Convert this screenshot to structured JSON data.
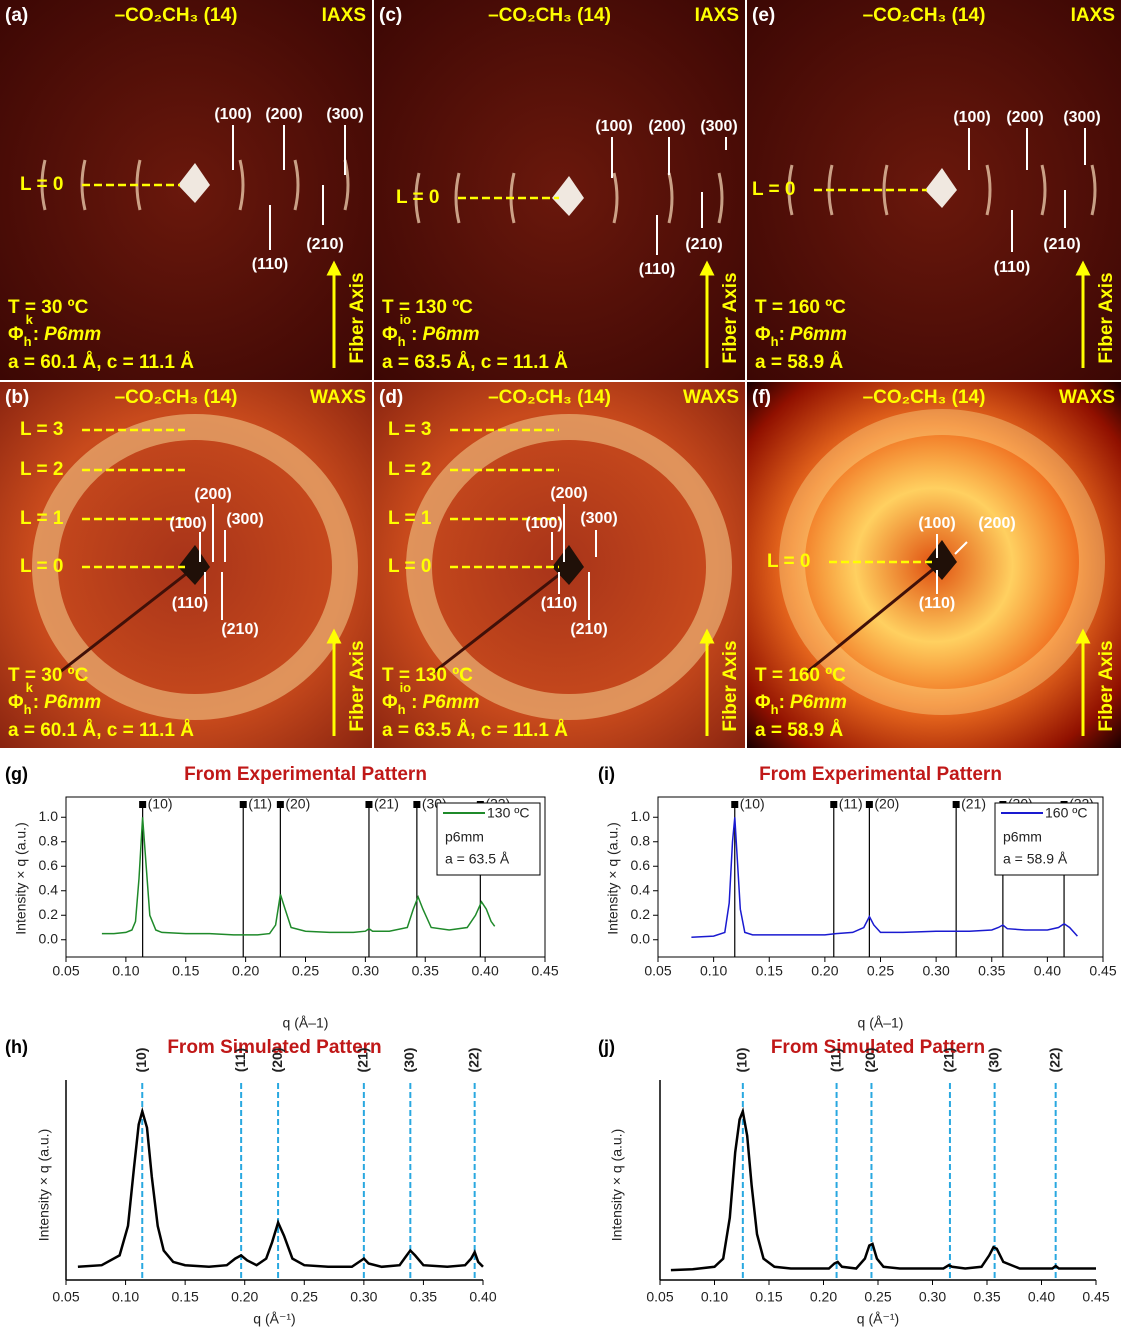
{
  "panels": [
    {
      "label": "(a)",
      "title": "–CO₂CH₃ (14)",
      "mode": "IAXS",
      "layers": [
        "L = 0"
      ],
      "reflections": [
        "(100)",
        "(200)",
        "(300)",
        "(110)",
        "(210)"
      ],
      "temperature": "T = 30 ºC",
      "phase": {
        "symbol": "Φ",
        "sub": "h",
        "sup": "k",
        "separator": ":",
        "group": "P6mm"
      },
      "lattice": "a = 60.1 Å, c = 11.1 Å",
      "axis": "Fiber Axis"
    },
    {
      "label": "(c)",
      "title": "–CO₂CH₃ (14)",
      "mode": "IAXS",
      "layers": [
        "L = 0"
      ],
      "reflections": [
        "(100)",
        "(200)",
        "(300)",
        "(110)",
        "(210)"
      ],
      "temperature": "T = 130 ºC",
      "phase": {
        "symbol": "Φ",
        "sub": "h",
        "sup": "io",
        "separator": ":",
        "group": "P6mm"
      },
      "lattice": "a = 63.5 Å, c = 11.1 Å",
      "axis": "Fiber Axis"
    },
    {
      "label": "(e)",
      "title": "–CO₂CH₃ (14)",
      "mode": "IAXS",
      "layers": [
        "L = 0"
      ],
      "reflections": [
        "(100)",
        "(200)",
        "(300)",
        "(110)",
        "(210)"
      ],
      "temperature": "T = 160 ºC",
      "phase": {
        "symbol": "Φ",
        "sub": "h",
        "separator": ":",
        "group": "P6mm"
      },
      "lattice": "a = 58.9 Å",
      "axis": "Fiber Axis"
    },
    {
      "label": "(b)",
      "title": "–CO₂CH₃ (14)",
      "mode": "WAXS",
      "layers": [
        "L = 3",
        "L = 2",
        "L = 1",
        "L = 0"
      ],
      "reflections": [
        "(200)",
        "(100)",
        "(300)",
        "(110)",
        "(210)"
      ],
      "temperature": "T = 30 ºC",
      "phase": {
        "symbol": "Φ",
        "sub": "h",
        "sup": "k",
        "separator": ":",
        "group": "P6mm"
      },
      "lattice": "a = 60.1 Å, c = 11.1 Å",
      "axis": "Fiber Axis"
    },
    {
      "label": "(d)",
      "title": "–CO₂CH₃ (14)",
      "mode": "WAXS",
      "layers": [
        "L = 3",
        "L = 2",
        "L = 1",
        "L = 0"
      ],
      "reflections": [
        "(200)",
        "(100)",
        "(300)",
        "(110)",
        "(210)"
      ],
      "temperature": "T = 130 ºC",
      "phase": {
        "symbol": "Φ",
        "sub": "h",
        "sup": "io",
        "separator": ":",
        "group": "P6mm"
      },
      "lattice": "a = 63.5 Å, c = 11.1 Å",
      "axis": "Fiber Axis"
    },
    {
      "label": "(f)",
      "title": "–CO₂CH₃ (14)",
      "mode": "WAXS",
      "layers": [
        "L = 0"
      ],
      "reflections": [
        "(100)",
        "(200)",
        "(110)"
      ],
      "temperature": "T = 160 ºC",
      "phase": {
        "symbol": "Φ",
        "sub": "h",
        "separator": ":",
        "group": "P6mm"
      },
      "lattice": "a = 58.9 Å",
      "axis": "Fiber Axis"
    }
  ],
  "chart_data": [
    {
      "type": "line",
      "panel_label": "(g)",
      "title": "From Experimental Pattern",
      "xlabel": "q (Å–1)",
      "ylabel": "Intensity × q (a.u.)",
      "xlim": [
        0.05,
        0.45
      ],
      "xticks": [
        0.05,
        {
          "value": 0.1,
          "label": "0.10"
        },
        0.15,
        {
          "value": 0.2,
          "label": "0.20"
        },
        0.25,
        {
          "value": 0.3,
          "label": "0.30"
        },
        0.35,
        {
          "value": 0.4,
          "label": "0.40"
        },
        0.45
      ],
      "ylim": [
        -0.1,
        1.1
      ],
      "yticks": [
        {
          "value": 0,
          "label": "0.0"
        },
        0.2,
        0.4,
        0.6,
        0.8,
        {
          "value": 1,
          "label": "1.0"
        }
      ],
      "x": [
        0.08,
        0.09,
        0.1,
        0.105,
        0.108,
        0.111,
        0.114,
        0.117,
        0.12,
        0.125,
        0.13,
        0.15,
        0.17,
        0.19,
        0.21,
        0.22,
        0.225,
        0.229,
        0.233,
        0.238,
        0.25,
        0.27,
        0.29,
        0.3,
        0.303,
        0.306,
        0.32,
        0.335,
        0.34,
        0.344,
        0.348,
        0.355,
        0.37,
        0.385,
        0.392,
        0.397,
        0.401,
        0.405,
        0.408
      ],
      "series": [
        {
          "name": "130 ºC",
          "color": "#1f8a2a",
          "values": [
            0.05,
            0.05,
            0.06,
            0.08,
            0.15,
            0.5,
            1.0,
            0.6,
            0.2,
            0.08,
            0.06,
            0.05,
            0.05,
            0.04,
            0.04,
            0.05,
            0.12,
            0.37,
            0.25,
            0.1,
            0.07,
            0.06,
            0.06,
            0.07,
            0.09,
            0.07,
            0.07,
            0.1,
            0.25,
            0.35,
            0.25,
            0.1,
            0.08,
            0.1,
            0.2,
            0.31,
            0.25,
            0.15,
            0.11
          ]
        }
      ],
      "reference_lines": {
        "x": [
          0.114,
          0.198,
          0.229,
          0.303,
          0.343,
          0.396
        ],
        "labels": [
          "(10)",
          "(11)",
          "(20)",
          "(21)",
          "(30)",
          "(22)"
        ],
        "color": "#000000"
      },
      "legend_notes": [
        "p6mm",
        "a = 63.5 Å"
      ]
    },
    {
      "type": "line",
      "panel_label": "(i)",
      "title": "From Experimental Pattern",
      "xlabel": "q (Å–1)",
      "ylabel": "Intensity × q (a.u.)",
      "xlim": [
        0.05,
        0.45
      ],
      "xticks": [
        0.05,
        {
          "value": 0.1,
          "label": "0.10"
        },
        0.15,
        {
          "value": 0.2,
          "label": "0.20"
        },
        0.25,
        {
          "value": 0.3,
          "label": "0.30"
        },
        0.35,
        {
          "value": 0.4,
          "label": "0.40"
        },
        0.45
      ],
      "ylim": [
        -0.1,
        1.1
      ],
      "yticks": [
        {
          "value": 0,
          "label": "0.0"
        },
        0.2,
        0.4,
        0.6,
        0.8,
        {
          "value": 1,
          "label": "1.0"
        }
      ],
      "x": [
        0.08,
        0.1,
        0.11,
        0.114,
        0.117,
        0.119,
        0.121,
        0.124,
        0.128,
        0.135,
        0.15,
        0.18,
        0.2,
        0.21,
        0.225,
        0.235,
        0.24,
        0.244,
        0.25,
        0.27,
        0.3,
        0.318,
        0.33,
        0.35,
        0.356,
        0.36,
        0.364,
        0.38,
        0.4,
        0.41,
        0.415,
        0.42,
        0.427
      ],
      "series": [
        {
          "name": "160 ºC",
          "color": "#1a1ad0",
          "values": [
            0.02,
            0.03,
            0.06,
            0.3,
            0.8,
            1.0,
            0.7,
            0.25,
            0.06,
            0.04,
            0.04,
            0.04,
            0.04,
            0.05,
            0.06,
            0.1,
            0.19,
            0.12,
            0.06,
            0.06,
            0.07,
            0.07,
            0.07,
            0.08,
            0.1,
            0.12,
            0.09,
            0.08,
            0.08,
            0.1,
            0.13,
            0.1,
            0.03
          ]
        }
      ],
      "reference_lines": {
        "x": [
          0.119,
          0.208,
          0.24,
          0.318,
          0.36,
          0.415
        ],
        "labels": [
          "(10)",
          "(11)",
          "(20)",
          "(21)",
          "(30)",
          "(22)"
        ],
        "color": "#000000"
      },
      "legend_notes": [
        "p6mm",
        "a = 58.9 Å"
      ]
    },
    {
      "type": "line",
      "panel_label": "(h)",
      "title": "From Simulated Pattern",
      "xlabel": "q (Å⁻¹)",
      "ylabel": "Intensity × q (a.u.)",
      "xlim": [
        0.05,
        0.4
      ],
      "xticks": [
        0.05,
        {
          "value": 0.1,
          "label": "0.10"
        },
        0.15,
        {
          "value": 0.2,
          "label": "0.20"
        },
        0.25,
        {
          "value": 0.3,
          "label": "0.30"
        },
        0.35,
        {
          "value": 0.4,
          "label": "0.40"
        }
      ],
      "ylim": [
        0,
        1.1
      ],
      "x": [
        0.06,
        0.08,
        0.095,
        0.102,
        0.107,
        0.111,
        0.114,
        0.118,
        0.122,
        0.127,
        0.132,
        0.14,
        0.15,
        0.17,
        0.185,
        0.192,
        0.197,
        0.202,
        0.21,
        0.218,
        0.223,
        0.228,
        0.233,
        0.24,
        0.25,
        0.27,
        0.29,
        0.296,
        0.3,
        0.304,
        0.315,
        0.33,
        0.336,
        0.339,
        0.343,
        0.35,
        0.37,
        0.385,
        0.39,
        0.393,
        0.396,
        0.4
      ],
      "series": [
        {
          "color": "#000000",
          "values": [
            0.05,
            0.06,
            0.12,
            0.3,
            0.65,
            0.92,
            1.0,
            0.9,
            0.6,
            0.3,
            0.15,
            0.08,
            0.06,
            0.05,
            0.06,
            0.1,
            0.12,
            0.09,
            0.06,
            0.1,
            0.2,
            0.32,
            0.24,
            0.1,
            0.06,
            0.05,
            0.05,
            0.08,
            0.1,
            0.07,
            0.05,
            0.06,
            0.12,
            0.15,
            0.12,
            0.06,
            0.05,
            0.06,
            0.1,
            0.14,
            0.08,
            0.05
          ]
        }
      ],
      "reference_lines": {
        "x": [
          0.114,
          0.197,
          0.228,
          0.3,
          0.339,
          0.393
        ],
        "labels": [
          "(10)",
          "(11)",
          "(20)",
          "(21)",
          "(30)",
          "(22)"
        ],
        "color": "#29a8e0"
      }
    },
    {
      "type": "line",
      "panel_label": "(j)",
      "title": "From Simulated Pattern",
      "xlabel": "q (Å⁻¹)",
      "ylabel": "Intensity × q (a.u.)",
      "xlim": [
        0.05,
        0.45
      ],
      "xticks": [
        0.05,
        {
          "value": 0.1,
          "label": "0.10"
        },
        0.15,
        {
          "value": 0.2,
          "label": "0.20"
        },
        0.25,
        {
          "value": 0.3,
          "label": "0.30"
        },
        0.35,
        {
          "value": 0.4,
          "label": "0.40"
        },
        0.45
      ],
      "ylim": [
        0,
        1.1
      ],
      "x": [
        0.06,
        0.08,
        0.1,
        0.108,
        0.114,
        0.119,
        0.123,
        0.126,
        0.13,
        0.134,
        0.139,
        0.145,
        0.155,
        0.17,
        0.19,
        0.205,
        0.21,
        0.213,
        0.217,
        0.23,
        0.238,
        0.242,
        0.245,
        0.249,
        0.255,
        0.27,
        0.29,
        0.31,
        0.315,
        0.318,
        0.33,
        0.345,
        0.352,
        0.356,
        0.359,
        0.365,
        0.38,
        0.4,
        0.41,
        0.413,
        0.416,
        0.43,
        0.45
      ],
      "series": [
        {
          "color": "#000000",
          "values": [
            0.03,
            0.035,
            0.05,
            0.1,
            0.35,
            0.75,
            0.95,
            1.0,
            0.85,
            0.55,
            0.25,
            0.1,
            0.05,
            0.04,
            0.04,
            0.04,
            0.07,
            0.08,
            0.05,
            0.04,
            0.1,
            0.18,
            0.19,
            0.1,
            0.05,
            0.04,
            0.04,
            0.04,
            0.06,
            0.05,
            0.04,
            0.05,
            0.12,
            0.17,
            0.16,
            0.08,
            0.04,
            0.04,
            0.04,
            0.055,
            0.04,
            0.04,
            0.04
          ]
        }
      ],
      "reference_lines": {
        "x": [
          0.126,
          0.212,
          0.244,
          0.316,
          0.357,
          0.413
        ],
        "labels": [
          "(10)",
          "(11)",
          "(20)",
          "(21)",
          "(30)",
          "(22)"
        ],
        "color": "#29a8e0"
      }
    }
  ]
}
